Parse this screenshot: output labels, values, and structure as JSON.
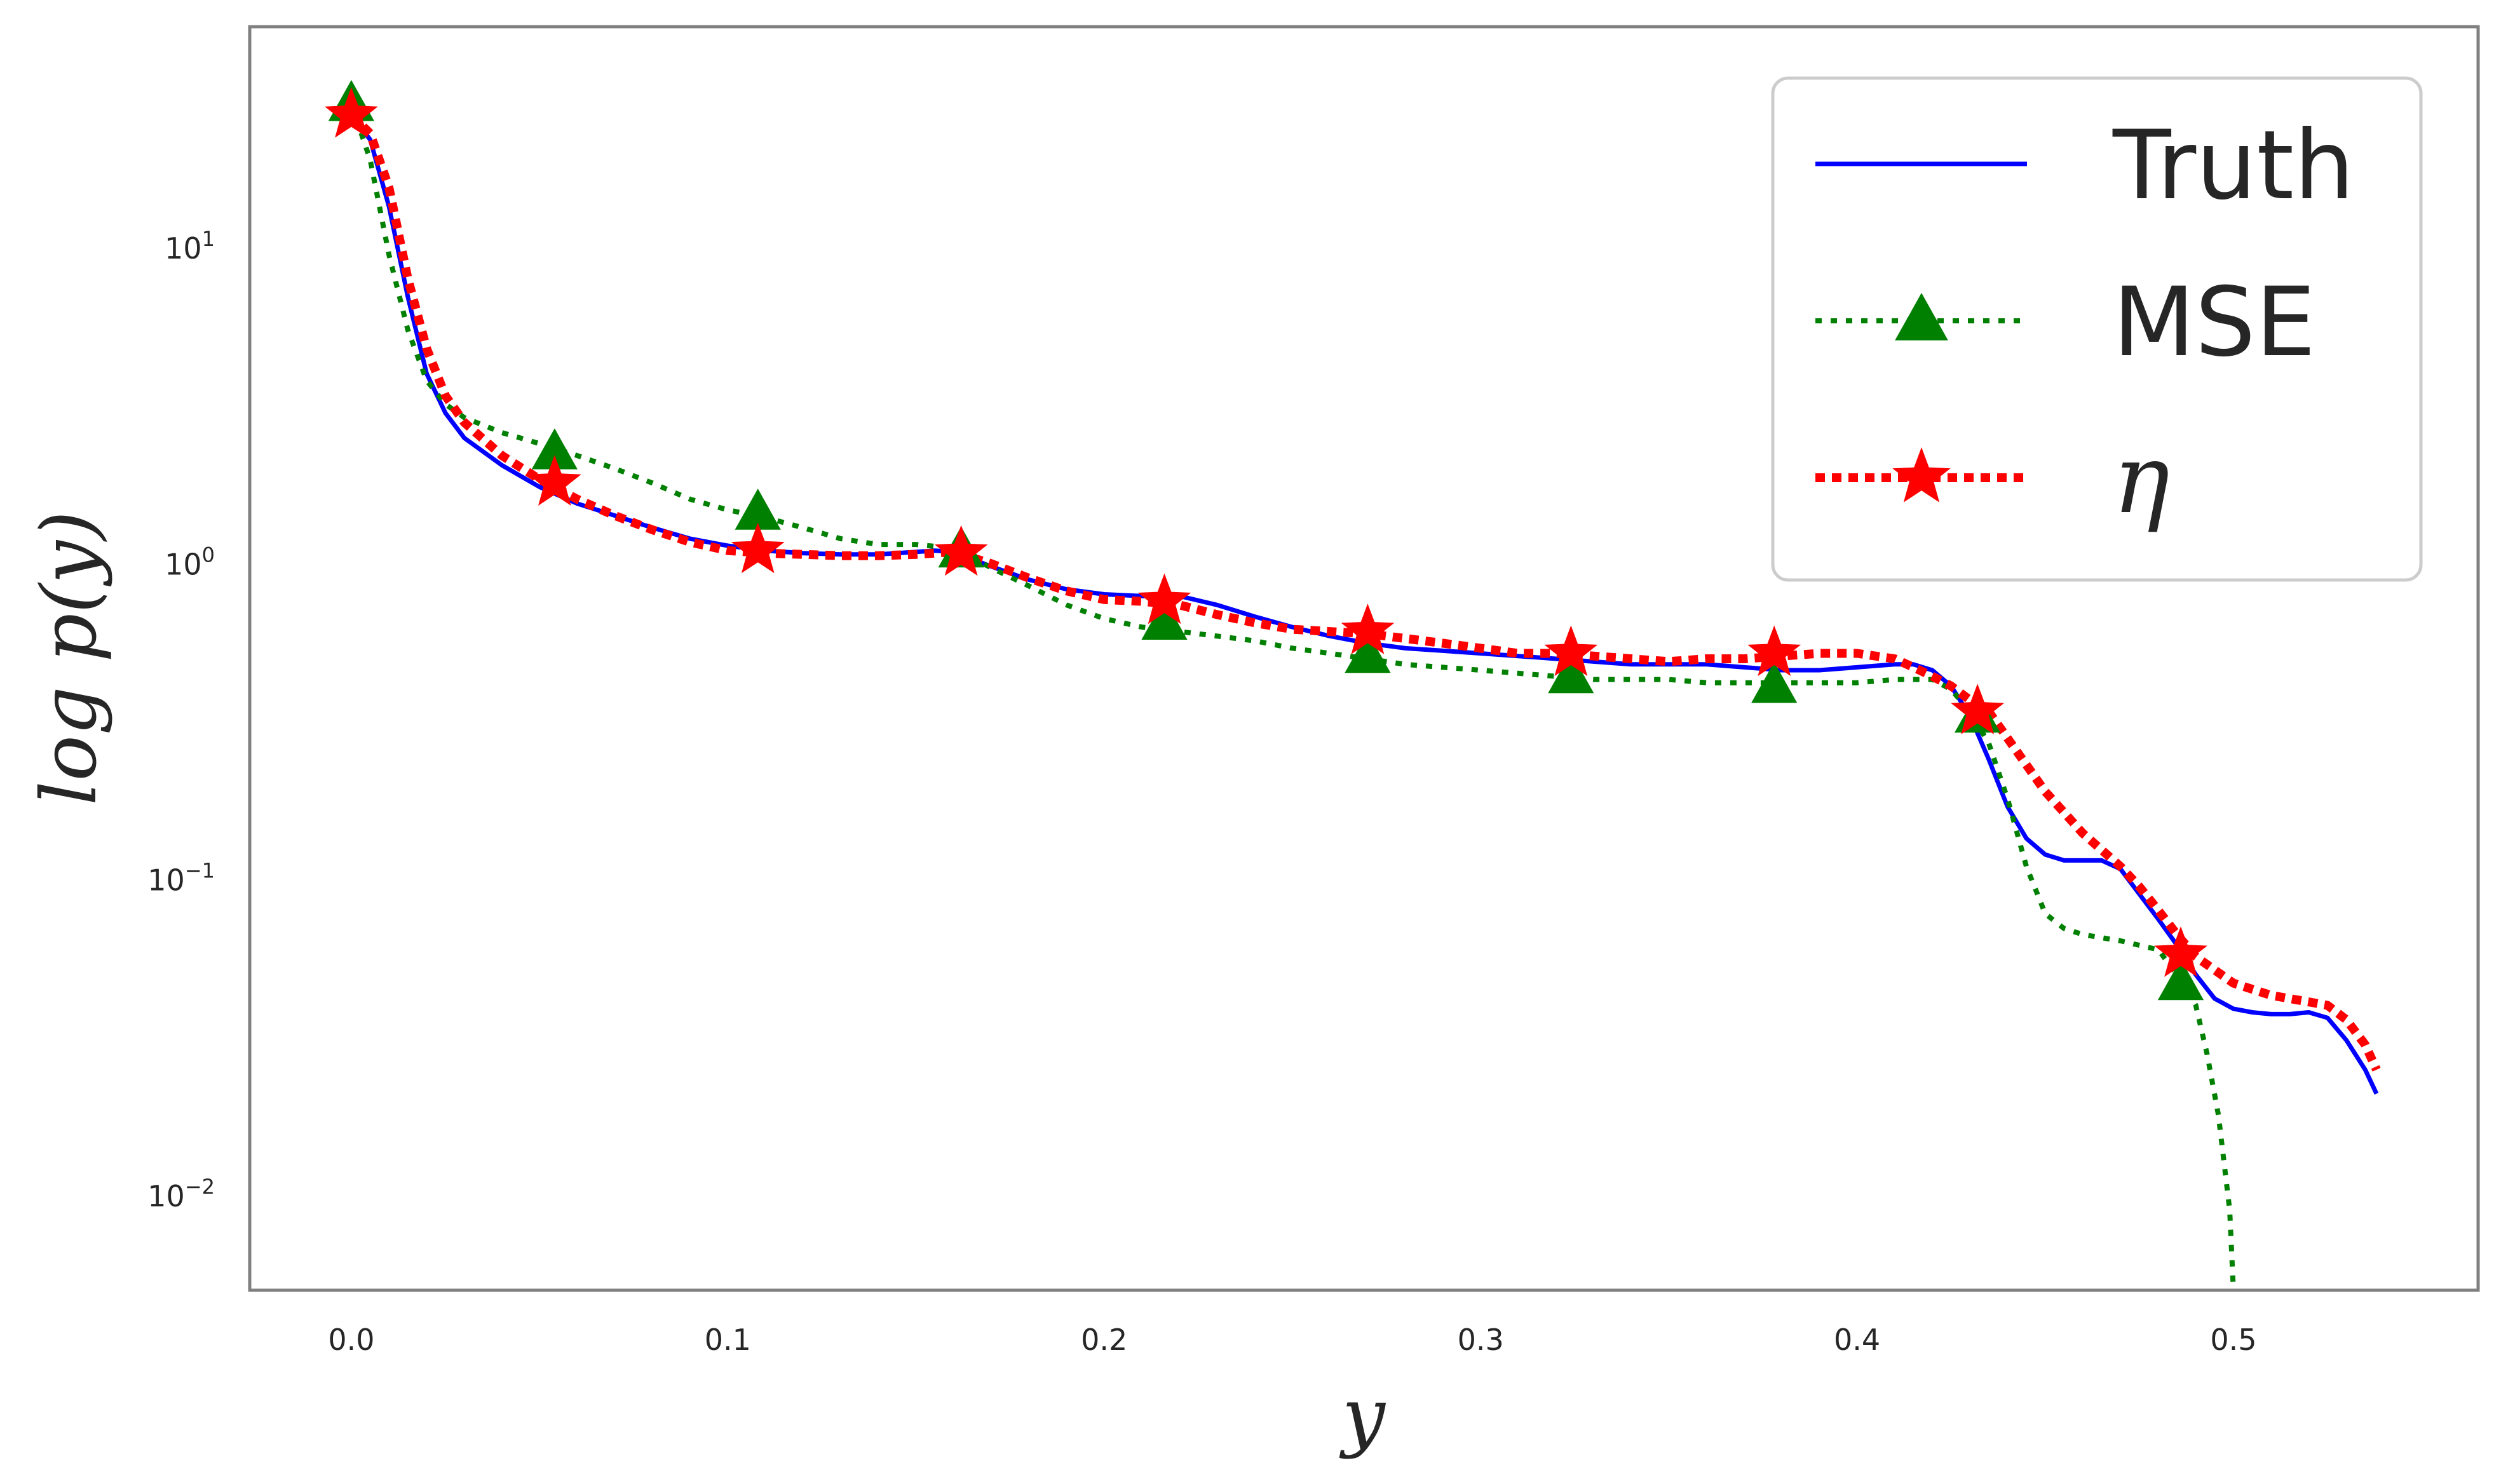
{
  "chart_data": {
    "type": "line",
    "title": "",
    "xlabel": "y",
    "ylabel": "log p(y)",
    "xlim": [
      -0.027,
      0.565
    ],
    "ylim_log10": [
      -2.3,
      1.7
    ],
    "yscale": "log",
    "grid": false,
    "legend_position": "top-right",
    "x_ticks": [
      {
        "value": 0.0,
        "label": "0.0"
      },
      {
        "value": 0.1,
        "label": "0.1"
      },
      {
        "value": 0.2,
        "label": "0.2"
      },
      {
        "value": 0.3,
        "label": "0.3"
      },
      {
        "value": 0.4,
        "label": "0.4"
      },
      {
        "value": 0.5,
        "label": "0.5"
      }
    ],
    "y_ticks": [
      {
        "exp": 1,
        "base": "10",
        "sup": "1"
      },
      {
        "exp": 0,
        "base": "10",
        "sup": "0"
      },
      {
        "exp": -1,
        "base": "10",
        "sup": "−1"
      },
      {
        "exp": -2,
        "base": "10",
        "sup": "−2"
      }
    ],
    "series": [
      {
        "name": "Truth",
        "color": "#0000ff",
        "style": "solid",
        "marker": "none",
        "x": [
          0.0,
          0.005,
          0.01,
          0.015,
          0.02,
          0.025,
          0.03,
          0.04,
          0.05,
          0.06,
          0.07,
          0.08,
          0.09,
          0.1,
          0.11,
          0.12,
          0.13,
          0.14,
          0.15,
          0.155,
          0.16,
          0.17,
          0.18,
          0.19,
          0.2,
          0.21,
          0.22,
          0.23,
          0.24,
          0.25,
          0.26,
          0.27,
          0.28,
          0.29,
          0.3,
          0.31,
          0.32,
          0.33,
          0.34,
          0.35,
          0.36,
          0.37,
          0.38,
          0.39,
          0.4,
          0.41,
          0.415,
          0.42,
          0.425,
          0.43,
          0.435,
          0.44,
          0.445,
          0.45,
          0.455,
          0.46,
          0.465,
          0.47,
          0.475,
          0.48,
          0.485,
          0.49,
          0.495,
          0.5,
          0.505,
          0.51,
          0.515,
          0.52,
          0.525,
          0.53,
          0.535,
          0.538
        ],
        "y": [
          26.3,
          22.0,
          13.5,
          7.0,
          4.0,
          3.0,
          2.5,
          2.05,
          1.75,
          1.55,
          1.42,
          1.3,
          1.2,
          1.14,
          1.1,
          1.08,
          1.07,
          1.07,
          1.09,
          1.1,
          1.09,
          0.98,
          0.89,
          0.83,
          0.8,
          0.79,
          0.79,
          0.74,
          0.68,
          0.63,
          0.59,
          0.56,
          0.54,
          0.53,
          0.52,
          0.51,
          0.5,
          0.49,
          0.48,
          0.48,
          0.48,
          0.47,
          0.46,
          0.46,
          0.47,
          0.48,
          0.48,
          0.46,
          0.41,
          0.33,
          0.24,
          0.17,
          0.135,
          0.12,
          0.115,
          0.115,
          0.115,
          0.108,
          0.09,
          0.075,
          0.062,
          0.05,
          0.042,
          0.039,
          0.038,
          0.0375,
          0.0375,
          0.038,
          0.0365,
          0.031,
          0.025,
          0.021
        ]
      },
      {
        "name": "MSE",
        "color": "#008000",
        "style": "dotted",
        "marker": "triangle",
        "x": [
          0.0,
          0.005,
          0.01,
          0.015,
          0.02,
          0.025,
          0.03,
          0.04,
          0.05,
          0.06,
          0.07,
          0.08,
          0.09,
          0.1,
          0.11,
          0.12,
          0.13,
          0.14,
          0.15,
          0.16,
          0.17,
          0.18,
          0.19,
          0.2,
          0.21,
          0.22,
          0.23,
          0.24,
          0.25,
          0.26,
          0.27,
          0.28,
          0.29,
          0.3,
          0.31,
          0.32,
          0.33,
          0.34,
          0.35,
          0.36,
          0.37,
          0.38,
          0.39,
          0.4,
          0.41,
          0.42,
          0.425,
          0.43,
          0.435,
          0.44,
          0.445,
          0.45,
          0.455,
          0.46,
          0.47,
          0.48,
          0.485,
          0.49,
          0.493,
          0.496,
          0.499,
          0.5
        ],
        "y": [
          28.5,
          19.0,
          9.5,
          5.5,
          3.8,
          3.2,
          2.9,
          2.6,
          2.4,
          2.2,
          2.0,
          1.8,
          1.6,
          1.48,
          1.4,
          1.3,
          1.2,
          1.15,
          1.15,
          1.12,
          0.97,
          0.85,
          0.74,
          0.67,
          0.63,
          0.61,
          0.59,
          0.57,
          0.54,
          0.52,
          0.5,
          0.48,
          0.47,
          0.46,
          0.45,
          0.44,
          0.43,
          0.43,
          0.43,
          0.42,
          0.42,
          0.42,
          0.42,
          0.42,
          0.43,
          0.43,
          0.4,
          0.34,
          0.27,
          0.18,
          0.11,
          0.078,
          0.07,
          0.067,
          0.064,
          0.06,
          0.05,
          0.04,
          0.028,
          0.018,
          0.009,
          0.005
        ]
      },
      {
        "name": "η",
        "color": "#ff0000",
        "style": "dotted",
        "marker": "star",
        "x": [
          0.0,
          0.005,
          0.01,
          0.015,
          0.02,
          0.025,
          0.03,
          0.04,
          0.05,
          0.06,
          0.07,
          0.08,
          0.09,
          0.1,
          0.11,
          0.12,
          0.13,
          0.14,
          0.15,
          0.16,
          0.17,
          0.18,
          0.19,
          0.2,
          0.21,
          0.22,
          0.23,
          0.24,
          0.25,
          0.26,
          0.27,
          0.28,
          0.29,
          0.3,
          0.31,
          0.32,
          0.33,
          0.34,
          0.35,
          0.36,
          0.37,
          0.38,
          0.39,
          0.4,
          0.41,
          0.415,
          0.42,
          0.425,
          0.43,
          0.435,
          0.44,
          0.45,
          0.46,
          0.47,
          0.475,
          0.48,
          0.485,
          0.49,
          0.5,
          0.51,
          0.52,
          0.525,
          0.53,
          0.535,
          0.538
        ],
        "y": [
          26.3,
          23.0,
          15.5,
          8.0,
          4.8,
          3.4,
          2.8,
          2.2,
          1.85,
          1.6,
          1.42,
          1.28,
          1.17,
          1.1,
          1.08,
          1.07,
          1.06,
          1.06,
          1.07,
          1.09,
          1.0,
          0.9,
          0.82,
          0.77,
          0.76,
          0.74,
          0.69,
          0.65,
          0.62,
          0.61,
          0.6,
          0.58,
          0.56,
          0.54,
          0.52,
          0.52,
          0.51,
          0.5,
          0.49,
          0.5,
          0.5,
          0.51,
          0.52,
          0.52,
          0.5,
          0.47,
          0.44,
          0.41,
          0.37,
          0.34,
          0.28,
          0.19,
          0.14,
          0.11,
          0.095,
          0.08,
          0.067,
          0.057,
          0.047,
          0.043,
          0.041,
          0.04,
          0.036,
          0.03,
          0.025
        ]
      }
    ],
    "markers": {
      "Truth": {
        "x": [],
        "y": []
      },
      "MSE": {
        "x": [
          0.0,
          0.054,
          0.108,
          0.162,
          0.216,
          0.27,
          0.324,
          0.378,
          0.432,
          0.486
        ],
        "y": [
          28.5,
          2.25,
          1.45,
          1.1,
          0.65,
          0.51,
          0.44,
          0.41,
          0.33,
          0.047
        ]
      },
      "η": {
        "x": [
          0.0,
          0.054,
          0.108,
          0.162,
          0.216,
          0.27,
          0.324,
          0.378,
          0.432,
          0.486
        ],
        "y": [
          26.3,
          1.8,
          1.1,
          1.08,
          0.76,
          0.61,
          0.52,
          0.52,
          0.34,
          0.058
        ]
      }
    }
  }
}
